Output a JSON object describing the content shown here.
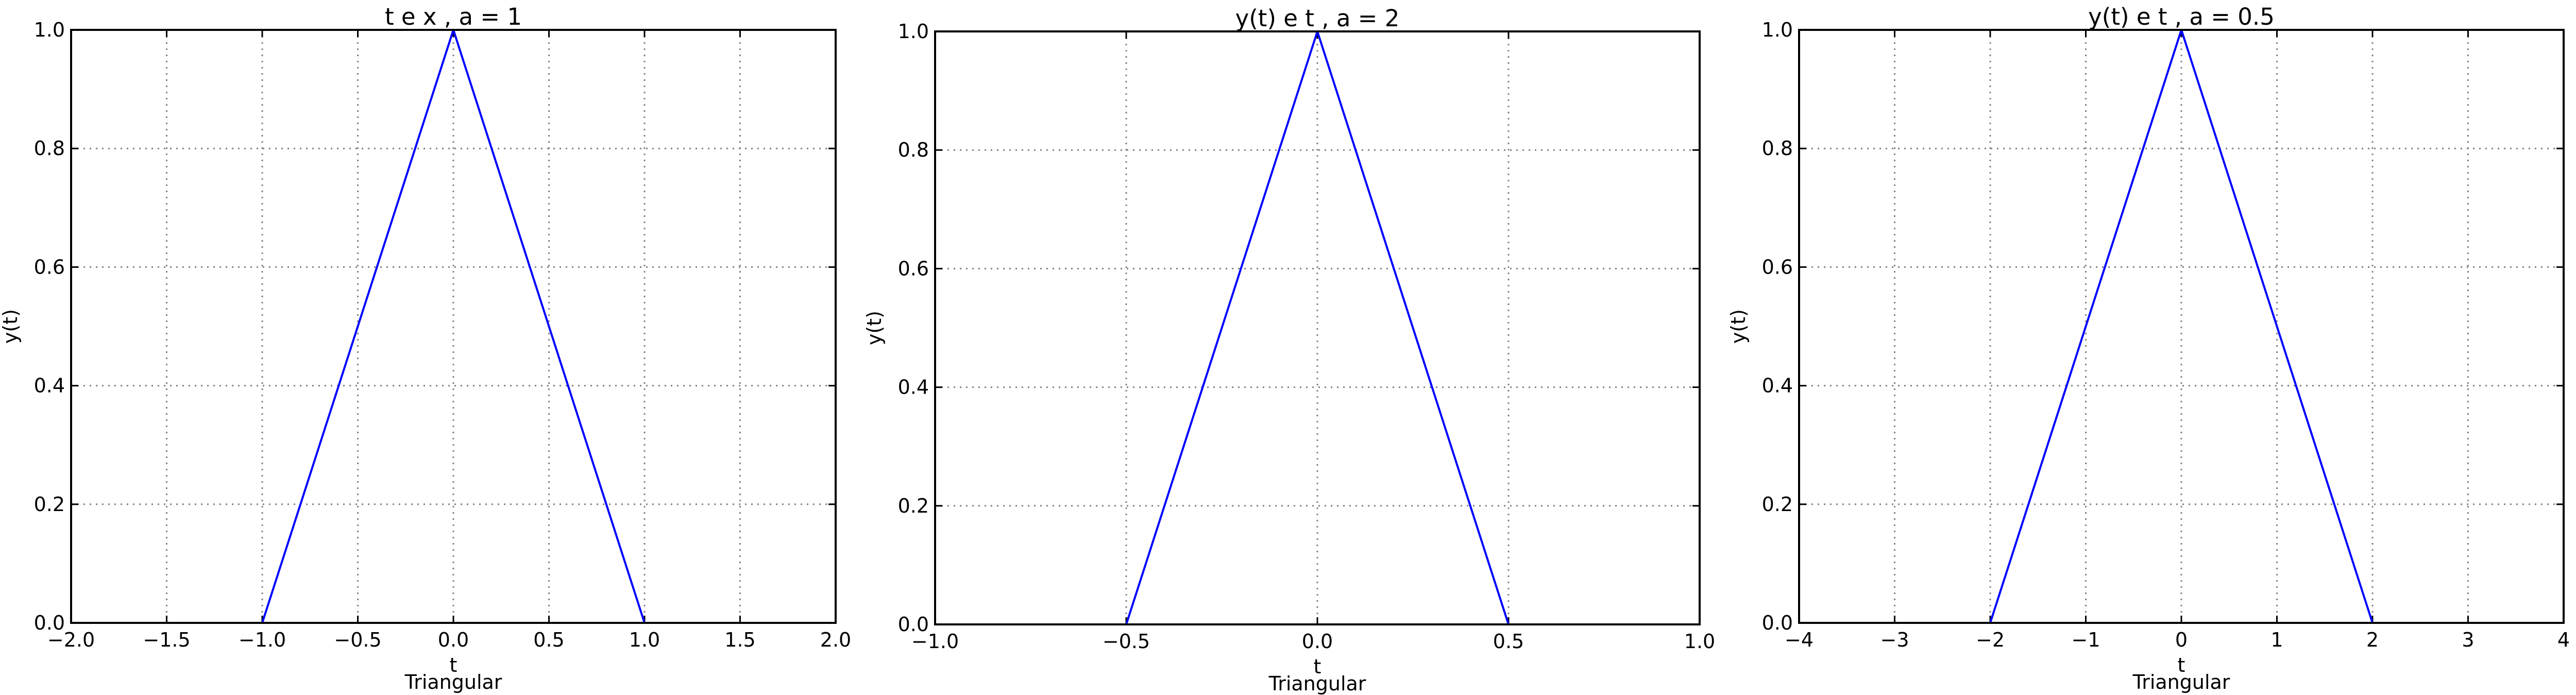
{
  "chart_data": [
    {
      "type": "line",
      "title": "t e x , a = 1",
      "xlabel": "t",
      "subtitle": "Triangular",
      "ylabel": "y(t)",
      "xlim": [
        -2.0,
        2.0
      ],
      "ylim": [
        0.0,
        1.0
      ],
      "xticks": [
        -2.0,
        -1.5,
        -1.0,
        -0.5,
        0.0,
        0.5,
        1.0,
        1.5,
        2.0
      ],
      "xtick_labels": [
        "−2.0",
        "−1.5",
        "−1.0",
        "−0.5",
        "0.0",
        "0.5",
        "1.0",
        "1.5",
        "2.0"
      ],
      "yticks": [
        0.0,
        0.2,
        0.4,
        0.6,
        0.8,
        1.0
      ],
      "ytick_labels": [
        "0.0",
        "0.2",
        "0.4",
        "0.6",
        "0.8",
        "1.0"
      ],
      "grid": true,
      "series": [
        {
          "color": "#0000ff",
          "x": [
            -2.0,
            -1.0,
            0.0,
            1.0,
            2.0
          ],
          "y": [
            0.0,
            0.0,
            1.0,
            0.0,
            0.0
          ]
        }
      ]
    },
    {
      "type": "line",
      "title": "y(t) e t , a = 2",
      "xlabel": "t",
      "subtitle": "Triangular",
      "ylabel": "y(t)",
      "xlim": [
        -1.0,
        1.0
      ],
      "ylim": [
        0.0,
        1.0
      ],
      "xticks": [
        -1.0,
        -0.5,
        0.0,
        0.5,
        1.0
      ],
      "xtick_labels": [
        "−1.0",
        "−0.5",
        "0.0",
        "0.5",
        "1.0"
      ],
      "yticks": [
        0.0,
        0.2,
        0.4,
        0.6,
        0.8,
        1.0
      ],
      "ytick_labels": [
        "0.0",
        "0.2",
        "0.4",
        "0.6",
        "0.8",
        "1.0"
      ],
      "grid": true,
      "series": [
        {
          "color": "#0000ff",
          "x": [
            -1.0,
            -0.5,
            0.0,
            0.5,
            1.0
          ],
          "y": [
            0.0,
            0.0,
            1.0,
            0.0,
            0.0
          ]
        }
      ]
    },
    {
      "type": "line",
      "title": "y(t) e t , a = 0.5",
      "xlabel": "t",
      "subtitle": "Triangular",
      "ylabel": "y(t)",
      "xlim": [
        -4,
        4
      ],
      "ylim": [
        0.0,
        1.0
      ],
      "xticks": [
        -4,
        -3,
        -2,
        -1,
        0,
        1,
        2,
        3,
        4
      ],
      "xtick_labels": [
        "−4",
        "−3",
        "−2",
        "−1",
        "0",
        "1",
        "2",
        "3",
        "4"
      ],
      "yticks": [
        0.0,
        0.2,
        0.4,
        0.6,
        0.8,
        1.0
      ],
      "ytick_labels": [
        "0.0",
        "0.2",
        "0.4",
        "0.6",
        "0.8",
        "1.0"
      ],
      "grid": true,
      "series": [
        {
          "color": "#0000ff",
          "x": [
            -4,
            -2,
            0,
            2,
            4
          ],
          "y": [
            0.0,
            0.0,
            1.0,
            0.0,
            0.0
          ]
        }
      ]
    }
  ]
}
